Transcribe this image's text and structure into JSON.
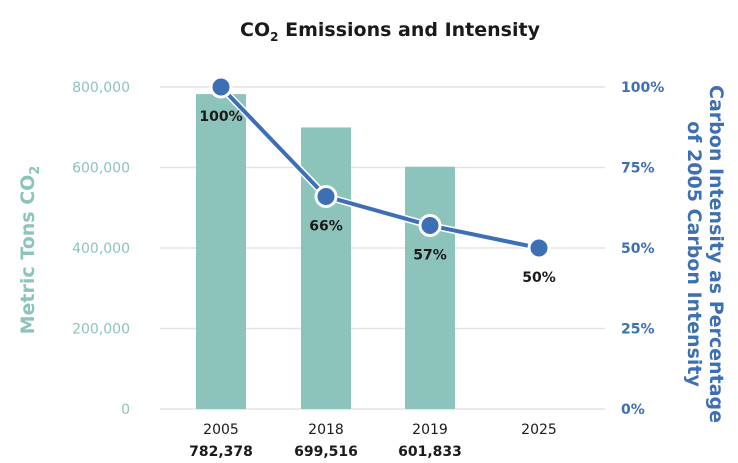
{
  "chart_data": {
    "type": "bar",
    "title": "CO",
    "title_sub": "2",
    "title_rest": " Emissions and Intensity",
    "categories": [
      "2005",
      "2018",
      "2019",
      "2025"
    ],
    "category_sublabels": [
      "782,378",
      "699,516",
      "601,833",
      ""
    ],
    "series": [
      {
        "type": "bar",
        "axis": "left",
        "color": "#8cc4bc",
        "values": [
          782378,
          699516,
          601833,
          null
        ]
      },
      {
        "type": "line",
        "axis": "right",
        "color": "#3d6fb4",
        "values": [
          100,
          66,
          57,
          50
        ],
        "point_labels": [
          "100%",
          "66%",
          "57%",
          "50%"
        ]
      }
    ],
    "ylabel_left": "Metric Tons CO",
    "ylabel_left_sub": "2",
    "ylim_left": [
      0,
      800000
    ],
    "yticks_left": [
      "0",
      "200,000",
      "400,000",
      "600,000",
      "800,000"
    ],
    "ylabel_right_line1": "Carbon Intensity as Percentage",
    "ylabel_right_line2": "of 2005 Carbon Intensity",
    "ylim_right": [
      0,
      100
    ],
    "yticks_right": [
      "0%",
      "25%",
      "50%",
      "75%",
      "100%"
    ],
    "grid": true,
    "colors": {
      "bar": "#8cc4bc",
      "line": "#3d6fb4",
      "grid": "#e3e3e3"
    }
  }
}
